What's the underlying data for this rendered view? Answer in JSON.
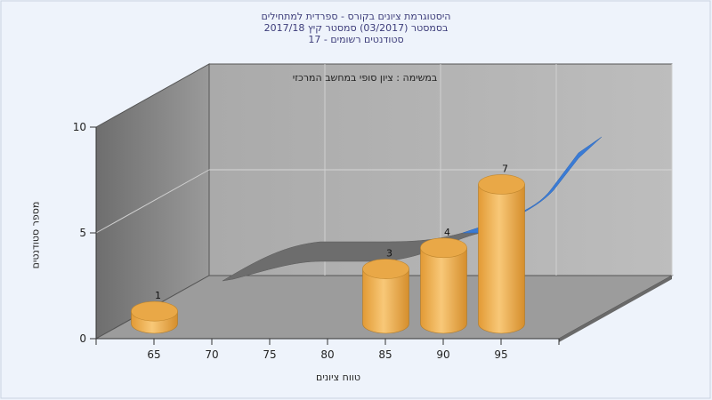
{
  "chart_data": {
    "type": "bar",
    "title_lines": [
      "היסטוגרמת ציונים בקורס - ספרדית למתחילים",
      "בסמסטר  (03/2017)  סמסטר קיץ 2017/18",
      "סטודנטים רשומים - 17"
    ],
    "annotation": "במשימה : ציון סופי במחשב המרכזי",
    "xlabel": "טווח ציונים",
    "ylabel": "מספר סטודנטים",
    "categories": [
      "65",
      "70",
      "75",
      "80",
      "85",
      "90",
      "95"
    ],
    "values": [
      1,
      0,
      0,
      0,
      3,
      4,
      7
    ],
    "ylim": [
      0,
      10
    ],
    "yticks": [
      "0",
      "5",
      "10"
    ],
    "grid": true,
    "colors": {
      "bar": "#e7a23e",
      "curve_gray": "#707070",
      "curve_blue": "#3a7bd5"
    }
  }
}
